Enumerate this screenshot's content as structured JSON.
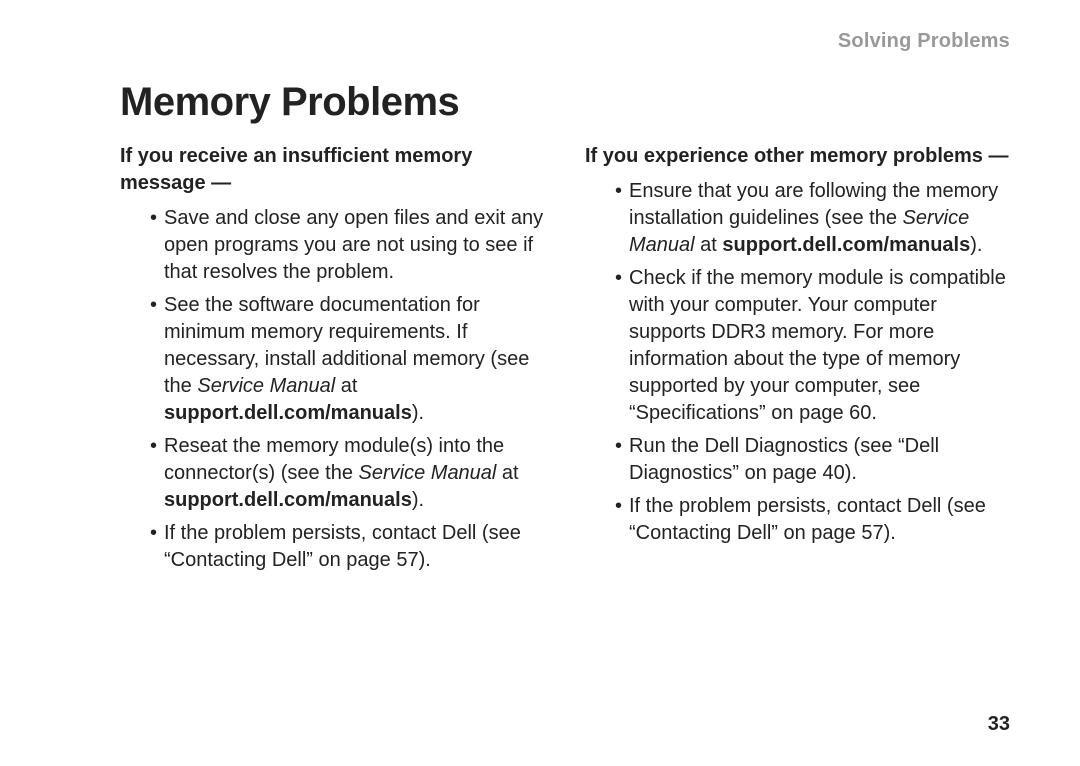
{
  "chapter_title": "Solving Problems",
  "page_number": "33",
  "heading": "Memory Problems",
  "left": {
    "subhead": "If you receive an insufficient memory message —",
    "bullets": [
      {
        "text": "Save and close any open files and exit any open programs you are not using to see if that resolves the problem."
      },
      {
        "pre": "See the software documentation for minimum memory requirements. If necessary, install additional memory (see the ",
        "it": "Service Manual",
        "mid": " at ",
        "bold": "support.dell.com/manuals",
        "post": ")."
      },
      {
        "pre": "Reseat the memory module(s) into the connector(s) (see the ",
        "it": "Service Manual",
        "mid": " at ",
        "bold": "support.dell.com/manuals",
        "post": ")."
      },
      {
        "text": "If the problem persists, contact Dell (see “Contacting Dell” on page 57)."
      }
    ]
  },
  "right": {
    "subhead": "If you experience other memory problems —",
    "bullets": [
      {
        "pre": "Ensure that you are following the memory installation guidelines (see the ",
        "it": "Service Manual",
        "mid": " at ",
        "bold": "support.dell.com/manuals",
        "post": ")."
      },
      {
        "text": "Check if the memory module is compatible with your computer. Your computer supports DDR3 memory. For more information about the type of memory supported by your computer, see “Specifications” on page 60."
      },
      {
        "text": "Run the Dell Diagnostics (see “Dell Diagnostics” on page 40)."
      },
      {
        "text": "If the problem persists, contact Dell (see “Contacting Dell” on page 57)."
      }
    ]
  },
  "colors": {
    "chapter_text": "#999999",
    "body_text": "#222222",
    "background": "#ffffff"
  }
}
